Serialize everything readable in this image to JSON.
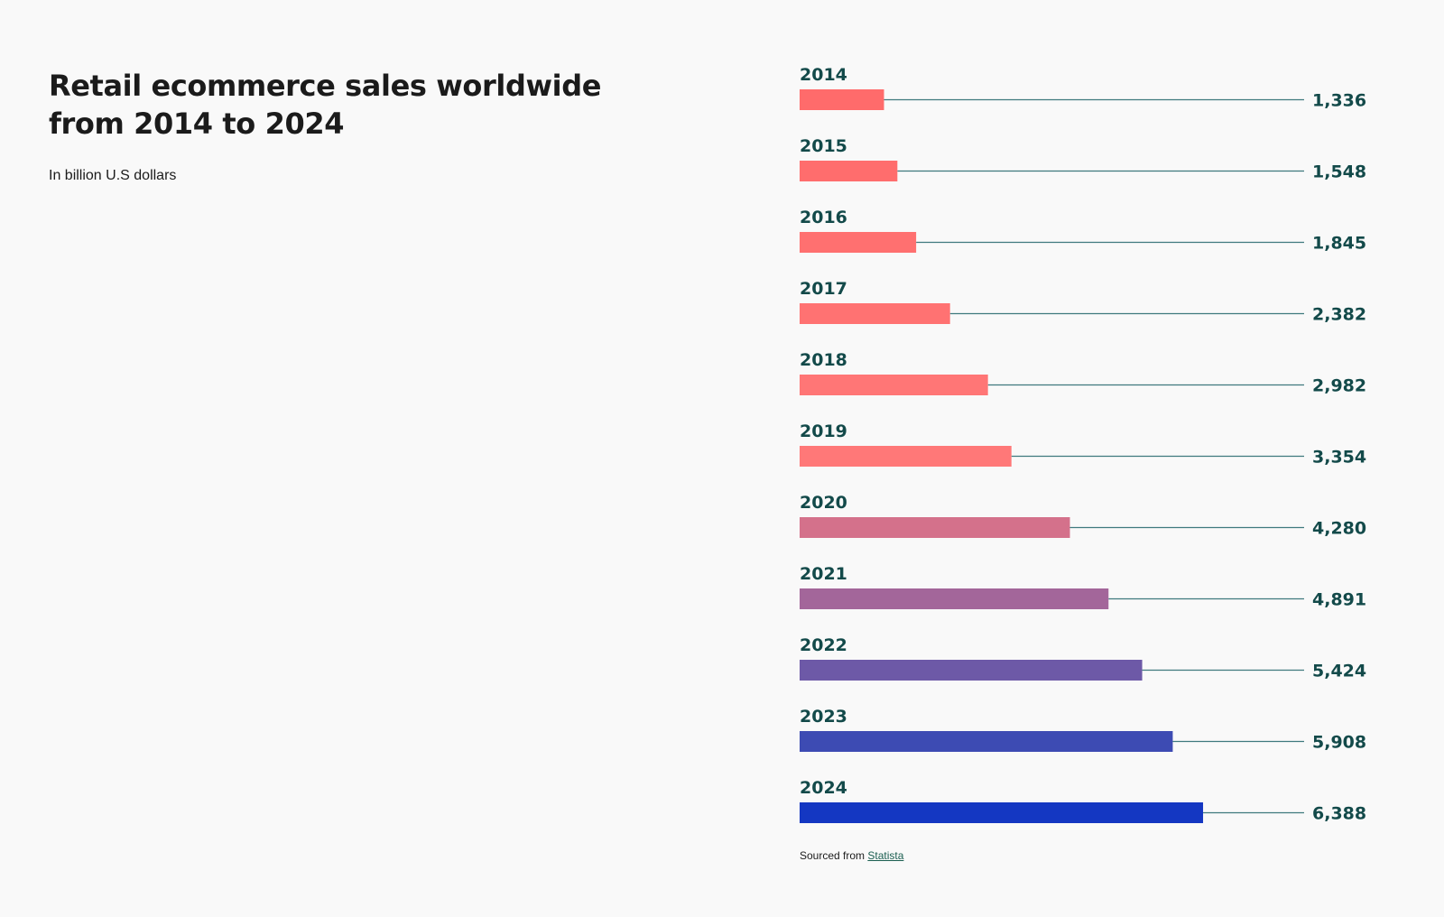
{
  "chart_data": {
    "type": "bar",
    "orientation": "horizontal",
    "title": "Retail ecommerce sales worldwide from 2014 to 2024",
    "subtitle": "In billion U.S dollars",
    "categories": [
      "2014",
      "2015",
      "2016",
      "2017",
      "2018",
      "2019",
      "2020",
      "2021",
      "2022",
      "2023",
      "2024"
    ],
    "values": [
      1336,
      1548,
      1845,
      2382,
      2982,
      3354,
      4280,
      4891,
      5424,
      5908,
      6388
    ],
    "value_labels": [
      "1,336",
      "1,548",
      "1,845",
      "2,382",
      "2,982",
      "3,354",
      "4,280",
      "4,891",
      "5,424",
      "5,908",
      "6,388"
    ],
    "bar_colors": [
      "#ff6b6b",
      "#ff6d6d",
      "#ff7070",
      "#ff7272",
      "#ff7676",
      "#ff7878",
      "#d4718b",
      "#a3669a",
      "#6d59a7",
      "#3d4bb3",
      "#1437c2"
    ],
    "leader_color": "#3f7a7e",
    "xlim": [
      0,
      8000
    ],
    "grid": false,
    "legend": "none"
  },
  "source": {
    "prefix": "Sourced from",
    "link_text": "Statista"
  }
}
